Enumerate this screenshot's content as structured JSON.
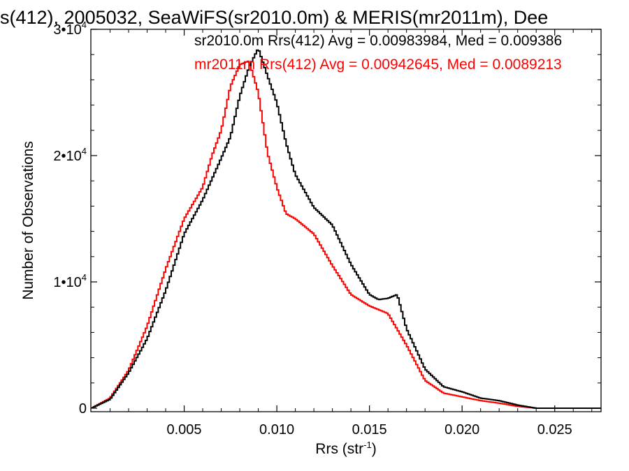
{
  "chart_data": {
    "type": "line",
    "title": "s(412), 2005032, SeaWiFS(sr2010.0m) & MERIS(mr2011m), Dee",
    "xlabel": "Rrs (str",
    "xlabel_sup": "-1",
    "xlabel_end": ")",
    "ylabel": "Number of Observations",
    "xlim": [
      0.0,
      0.0275
    ],
    "ylim": [
      0,
      30000
    ],
    "grid": false,
    "x_ticks": [
      0.005,
      0.01,
      0.015,
      0.02,
      0.025
    ],
    "x_tick_labels": [
      "0.005",
      "0.010",
      "0.015",
      "0.020",
      "0.025"
    ],
    "y_ticks": [
      {
        "value": 0,
        "base": "0",
        "sup": ""
      },
      {
        "value": 10000,
        "base": "1•10",
        "sup": "4"
      },
      {
        "value": 20000,
        "base": "2•10",
        "sup": "4"
      },
      {
        "value": 30000,
        "base": "3•10",
        "sup": "4"
      }
    ],
    "series": [
      {
        "name": "sr2010.0m",
        "color": "#000000",
        "annotation": "sr2010.0m Rrs(412) Avg = 0.00983984, Med = 0.009386",
        "x": [
          0.0,
          0.001,
          0.002,
          0.003,
          0.004,
          0.005,
          0.006,
          0.007,
          0.0075,
          0.008,
          0.0085,
          0.009,
          0.0095,
          0.01,
          0.0105,
          0.011,
          0.012,
          0.013,
          0.014,
          0.015,
          0.0155,
          0.016,
          0.0165,
          0.017,
          0.018,
          0.019,
          0.02,
          0.021,
          0.022,
          0.023,
          0.024,
          0.025,
          0.0275
        ],
        "y": [
          0,
          700,
          2800,
          5500,
          9300,
          13800,
          16500,
          19800,
          21500,
          24700,
          27000,
          28500,
          26300,
          24200,
          21000,
          18500,
          15900,
          14500,
          11400,
          9000,
          8600,
          8700,
          9000,
          6300,
          3100,
          1700,
          1300,
          800,
          600,
          250,
          0,
          0,
          0
        ]
      },
      {
        "name": "mr2011m",
        "color": "#ff0000",
        "annotation": "mr2011m Rrs(412) Avg = 0.00942645, Med = 0.0089213",
        "x": [
          0.0,
          0.001,
          0.002,
          0.003,
          0.004,
          0.005,
          0.006,
          0.0065,
          0.007,
          0.0075,
          0.008,
          0.0085,
          0.009,
          0.0095,
          0.01,
          0.0105,
          0.011,
          0.012,
          0.013,
          0.014,
          0.015,
          0.016,
          0.017,
          0.018,
          0.019,
          0.02,
          0.021,
          0.022,
          0.023,
          0.024,
          0.025,
          0.0275
        ],
        "y": [
          0,
          800,
          3000,
          6500,
          11000,
          15000,
          17500,
          20000,
          22000,
          25500,
          27200,
          27500,
          25000,
          20200,
          17500,
          15400,
          15000,
          13800,
          11300,
          9000,
          8100,
          7500,
          5000,
          2200,
          1200,
          900,
          600,
          400,
          150,
          0,
          0,
          0
        ]
      }
    ]
  }
}
